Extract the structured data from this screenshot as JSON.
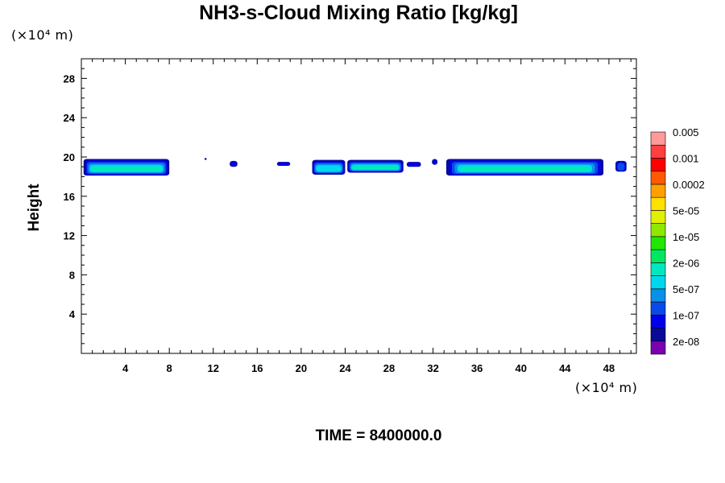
{
  "chart_data": {
    "type": "heatmap",
    "title": "NH3-s-Cloud Mixing Ratio [kg/kg]",
    "ylabel": "Height",
    "x_unit": "(×10⁴ m)",
    "y_unit": "(×10⁴ m)",
    "xlim": [
      0,
      50.5
    ],
    "ylim": [
      0,
      30
    ],
    "x_ticks": [
      4,
      8,
      12,
      16,
      20,
      24,
      28,
      32,
      36,
      40,
      44,
      48
    ],
    "y_ticks": [
      4,
      8,
      12,
      16,
      20,
      24,
      28
    ],
    "time_label": "TIME = 8400000.0",
    "colorbar": {
      "colors": [
        "#7a00b0",
        "#0a0a9a",
        "#0000e8",
        "#0a4ae8",
        "#0a90e8",
        "#00d8f0",
        "#00e8c0",
        "#00e860",
        "#20e800",
        "#90e800",
        "#e0f000",
        "#ffe000",
        "#ffa000",
        "#ff5a00",
        "#ff0000",
        "#ff4040",
        "#ff9a9a"
      ],
      "labels": [
        "2e-08",
        "1e-07",
        "5e-07",
        "2e-06",
        "1e-05",
        "5e-05",
        "0.0002",
        "0.001",
        "0.005"
      ]
    },
    "cloud_regions": [
      {
        "x": [
          0.2,
          8.0
        ],
        "y": [
          18.1,
          19.8
        ],
        "max_level": 6
      },
      {
        "x": [
          11.2,
          11.4
        ],
        "y": [
          19.7,
          19.9
        ],
        "max_level": 1
      },
      {
        "x": [
          13.5,
          14.2
        ],
        "y": [
          19.0,
          19.6
        ],
        "max_level": 2
      },
      {
        "x": [
          17.8,
          19.0
        ],
        "y": [
          19.1,
          19.5
        ],
        "max_level": 2
      },
      {
        "x": [
          21.0,
          24.0
        ],
        "y": [
          18.2,
          19.7
        ],
        "max_level": 5
      },
      {
        "x": [
          24.2,
          29.3
        ],
        "y": [
          18.4,
          19.7
        ],
        "max_level": 6
      },
      {
        "x": [
          29.6,
          30.9
        ],
        "y": [
          19.0,
          19.5
        ],
        "max_level": 2
      },
      {
        "x": [
          31.9,
          32.4
        ],
        "y": [
          19.2,
          19.8
        ],
        "max_level": 2
      },
      {
        "x": [
          33.2,
          47.5
        ],
        "y": [
          18.1,
          19.8
        ],
        "max_level": 6
      },
      {
        "x": [
          48.6,
          49.6
        ],
        "y": [
          18.5,
          19.6
        ],
        "max_level": 3
      }
    ]
  }
}
